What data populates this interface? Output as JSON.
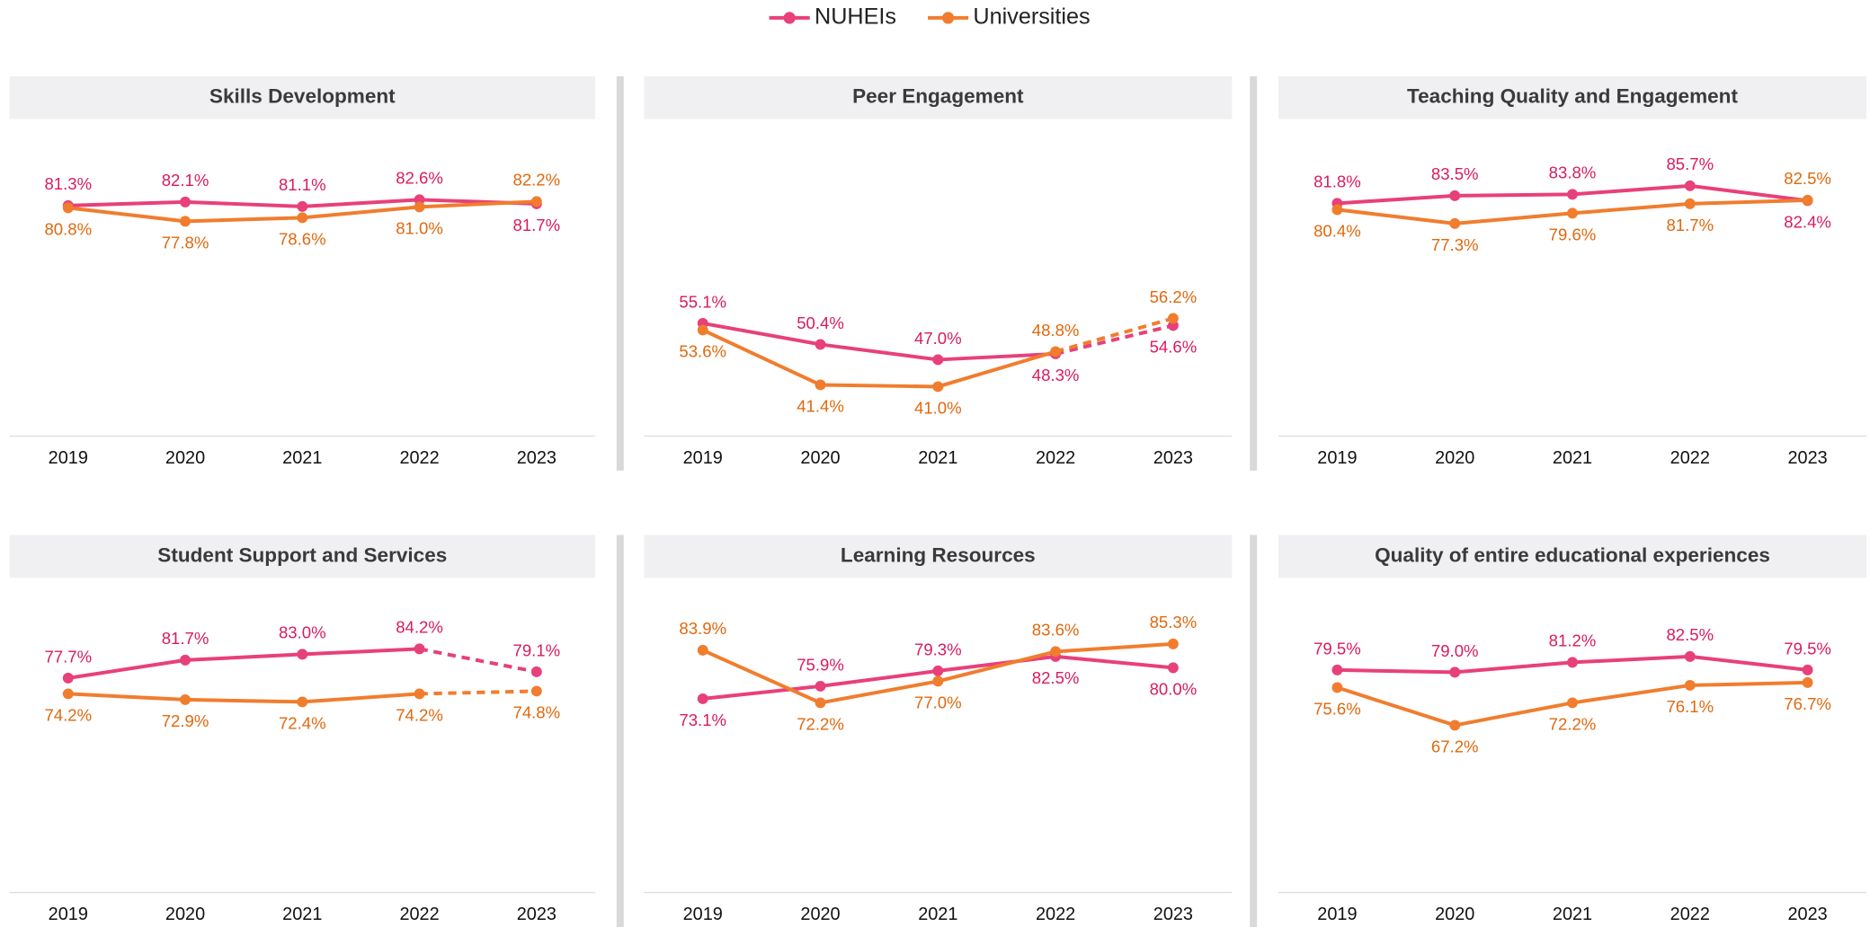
{
  "chart_data": [
    {
      "type": "line",
      "title": "Skills Development",
      "categories": [
        "2019",
        "2020",
        "2021",
        "2022",
        "2023"
      ],
      "ylim": [
        30,
        100
      ],
      "last_segment_dashed": false,
      "series": [
        {
          "name": "NUHEIs",
          "color": "#e8407a",
          "label_color": "#d81b60",
          "values": [
            81.3,
            82.1,
            81.1,
            82.6,
            81.7
          ],
          "value_labels": [
            "81.3%",
            "82.1%",
            "81.1%",
            "82.6%",
            "81.7%"
          ]
        },
        {
          "name": "Universities",
          "color": "#f07d2e",
          "label_color": "#e0680e",
          "values": [
            80.8,
            77.8,
            78.6,
            81.0,
            82.2
          ],
          "value_labels": [
            "80.8%",
            "77.8%",
            "78.6%",
            "81.0%",
            "82.2%"
          ]
        }
      ]
    },
    {
      "type": "line",
      "title": "Peer Engagement",
      "categories": [
        "2019",
        "2020",
        "2021",
        "2022",
        "2023"
      ],
      "ylim": [
        30,
        100
      ],
      "last_segment_dashed": true,
      "series": [
        {
          "name": "NUHEIs",
          "color": "#e8407a",
          "label_color": "#d81b60",
          "values": [
            55.1,
            50.4,
            47.0,
            48.3,
            54.6
          ],
          "value_labels": [
            "55.1%",
            "50.4%",
            "47.0%",
            "48.3%",
            "54.6%"
          ]
        },
        {
          "name": "Universities",
          "color": "#f07d2e",
          "label_color": "#e0680e",
          "values": [
            53.6,
            41.4,
            41.0,
            48.8,
            56.2
          ],
          "value_labels": [
            "53.6%",
            "41.4%",
            "41.0%",
            "48.8%",
            "56.2%"
          ]
        }
      ]
    },
    {
      "type": "line",
      "title": "Teaching Quality and Engagement",
      "categories": [
        "2019",
        "2020",
        "2021",
        "2022",
        "2023"
      ],
      "ylim": [
        30,
        100
      ],
      "last_segment_dashed": false,
      "series": [
        {
          "name": "NUHEIs",
          "color": "#e8407a",
          "label_color": "#d81b60",
          "values": [
            81.8,
            83.5,
            83.8,
            85.7,
            82.4
          ],
          "value_labels": [
            "81.8%",
            "83.5%",
            "83.8%",
            "85.7%",
            "82.4%"
          ]
        },
        {
          "name": "Universities",
          "color": "#f07d2e",
          "label_color": "#e0680e",
          "values": [
            80.4,
            77.3,
            79.6,
            81.7,
            82.5
          ],
          "value_labels": [
            "80.4%",
            "77.3%",
            "79.6%",
            "81.7%",
            "82.5%"
          ]
        }
      ]
    },
    {
      "type": "line",
      "title": "Student Support and Services",
      "categories": [
        "2019",
        "2020",
        "2021",
        "2022",
        "2023"
      ],
      "ylim": [
        30,
        100
      ],
      "last_segment_dashed": true,
      "series": [
        {
          "name": "NUHEIs",
          "color": "#e8407a",
          "label_color": "#d81b60",
          "values": [
            77.7,
            81.7,
            83.0,
            84.2,
            79.1
          ],
          "value_labels": [
            "77.7%",
            "81.7%",
            "83.0%",
            "84.2%",
            "79.1%"
          ]
        },
        {
          "name": "Universities",
          "color": "#f07d2e",
          "label_color": "#e0680e",
          "values": [
            74.2,
            72.9,
            72.4,
            74.2,
            74.8
          ],
          "value_labels": [
            "74.2%",
            "72.9%",
            "72.4%",
            "74.2%",
            "74.8%"
          ]
        }
      ]
    },
    {
      "type": "line",
      "title": "Learning Resources",
      "categories": [
        "2019",
        "2020",
        "2021",
        "2022",
        "2023"
      ],
      "ylim": [
        30,
        100
      ],
      "last_segment_dashed": false,
      "series": [
        {
          "name": "NUHEIs",
          "color": "#e8407a",
          "label_color": "#d81b60",
          "values": [
            73.1,
            75.9,
            79.3,
            82.5,
            80.0
          ],
          "value_labels": [
            "73.1%",
            "75.9%",
            "79.3%",
            "82.5%",
            "80.0%"
          ]
        },
        {
          "name": "Universities",
          "color": "#f07d2e",
          "label_color": "#e0680e",
          "values": [
            83.9,
            72.2,
            77.0,
            83.6,
            85.3
          ],
          "value_labels": [
            "83.9%",
            "72.2%",
            "77.0%",
            "83.6%",
            "85.3%"
          ]
        }
      ]
    },
    {
      "type": "line",
      "title": "Quality of entire educational experiences",
      "categories": [
        "2019",
        "2020",
        "2021",
        "2022",
        "2023"
      ],
      "ylim": [
        30,
        100
      ],
      "last_segment_dashed": false,
      "series": [
        {
          "name": "NUHEIs",
          "color": "#e8407a",
          "label_color": "#d81b60",
          "values": [
            79.5,
            79.0,
            81.2,
            82.5,
            79.5
          ],
          "value_labels": [
            "79.5%",
            "79.0%",
            "81.2%",
            "82.5%",
            "79.5%"
          ]
        },
        {
          "name": "Universities",
          "color": "#f07d2e",
          "label_color": "#e0680e",
          "values": [
            75.6,
            67.2,
            72.2,
            76.1,
            76.7
          ],
          "value_labels": [
            "75.6%",
            "67.2%",
            "72.2%",
            "76.1%",
            "76.7%"
          ]
        }
      ]
    }
  ]
}
